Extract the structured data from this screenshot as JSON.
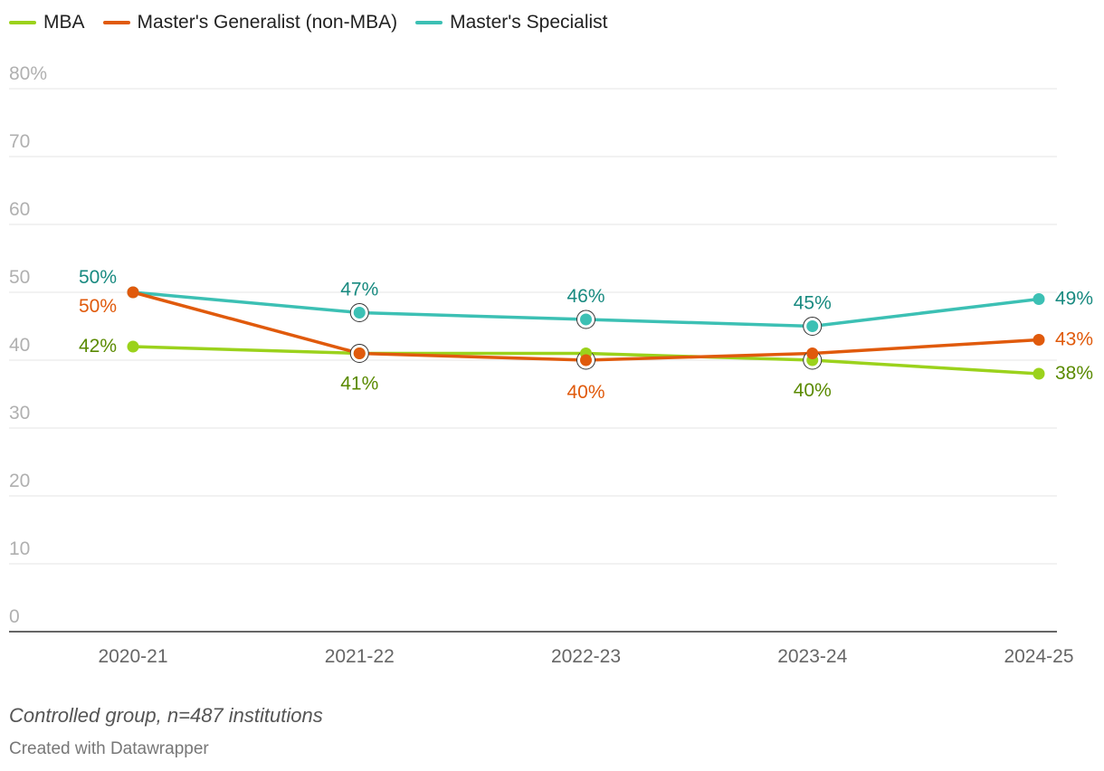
{
  "chart_data": {
    "type": "line",
    "categories": [
      "2020-21",
      "2021-22",
      "2022-23",
      "2023-24",
      "2024-25"
    ],
    "series": [
      {
        "name": "MBA",
        "values": [
          42,
          41,
          41,
          40,
          38
        ],
        "color": "#9bd21c",
        "label_color": "#5a8a00"
      },
      {
        "name": "Master's Generalist (non-MBA)",
        "values": [
          50,
          41,
          40,
          41,
          43
        ],
        "color": "#e05a0c",
        "label_color": "#e05a0c"
      },
      {
        "name": "Master's Specialist",
        "values": [
          50,
          47,
          46,
          45,
          49
        ],
        "color": "#3cc0b4",
        "label_color": "#188a80"
      }
    ],
    "data_labels": [
      {
        "series": 0,
        "index": 0,
        "text": "42%"
      },
      {
        "series": 0,
        "index": 1,
        "text": "41%"
      },
      {
        "series": 0,
        "index": 3,
        "text": "40%"
      },
      {
        "series": 0,
        "index": 4,
        "text": "38%"
      },
      {
        "series": 1,
        "index": 0,
        "text": "50%"
      },
      {
        "series": 1,
        "index": 2,
        "text": "40%"
      },
      {
        "series": 1,
        "index": 4,
        "text": "43%"
      },
      {
        "series": 2,
        "index": 0,
        "text": "50%"
      },
      {
        "series": 2,
        "index": 1,
        "text": "47%"
      },
      {
        "series": 2,
        "index": 2,
        "text": "46%"
      },
      {
        "series": 2,
        "index": 3,
        "text": "45%"
      },
      {
        "series": 2,
        "index": 4,
        "text": "49%"
      }
    ],
    "ring_markers": [
      {
        "series": 2,
        "index": 1
      },
      {
        "series": 2,
        "index": 2
      },
      {
        "series": 2,
        "index": 3
      },
      {
        "series": 1,
        "index": 1
      },
      {
        "series": 1,
        "index": 2
      },
      {
        "series": 0,
        "index": 3
      }
    ],
    "yticks": [
      "0",
      "10",
      "20",
      "30",
      "40",
      "50",
      "60",
      "70",
      "80%"
    ],
    "ylim": [
      0,
      80
    ],
    "grid": true,
    "legend_position": "top-left"
  },
  "note": "Controlled group, n=487 institutions",
  "credit": "Created with Datawrapper"
}
